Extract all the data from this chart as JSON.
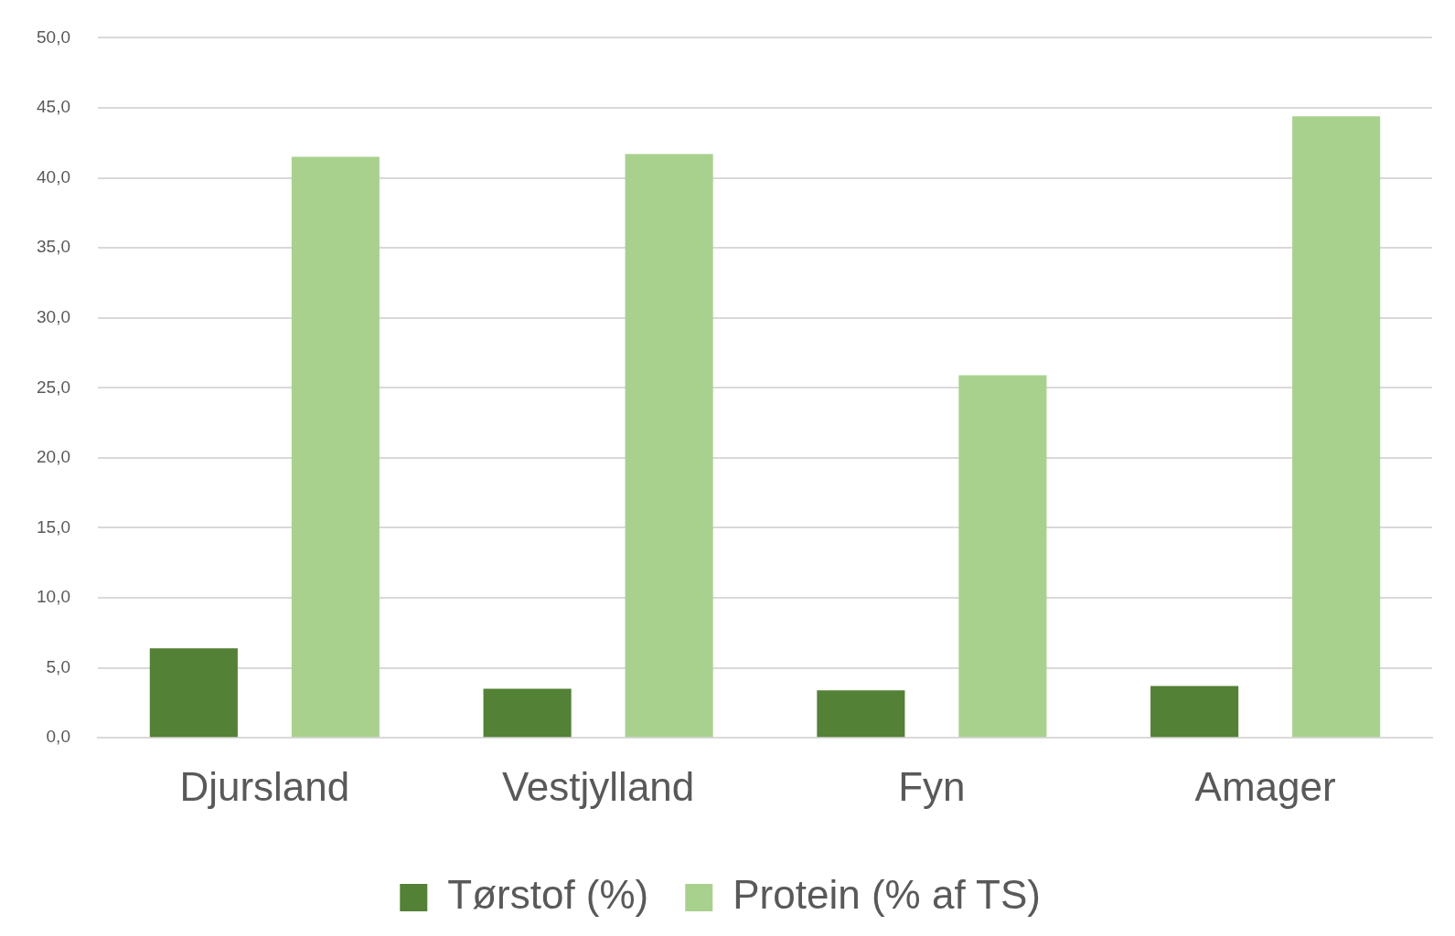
{
  "chart_data": {
    "type": "bar",
    "categories": [
      "Djursland",
      "Vestjylland",
      "Fyn",
      "Amager"
    ],
    "series": [
      {
        "name": "Tørstof (%)",
        "color": "#538135",
        "values": [
          6.4,
          3.5,
          3.4,
          3.7
        ]
      },
      {
        "name": "Protein (% af TS)",
        "color": "#a9d18e",
        "values": [
          41.5,
          41.7,
          25.9,
          44.4
        ]
      }
    ],
    "ylim": [
      0,
      50
    ],
    "yticks": [
      {
        "value": 0,
        "label": "0,0"
      },
      {
        "value": 5,
        "label": "5,0"
      },
      {
        "value": 10,
        "label": "10,0"
      },
      {
        "value": 15,
        "label": "15,0"
      },
      {
        "value": 20,
        "label": "20,0"
      },
      {
        "value": 25,
        "label": "25,0"
      },
      {
        "value": 30,
        "label": "30,0"
      },
      {
        "value": 35,
        "label": "35,0"
      },
      {
        "value": 40,
        "label": "40,0"
      },
      {
        "value": 45,
        "label": "45,0"
      },
      {
        "value": 50,
        "label": "50,0"
      }
    ],
    "grid": "y",
    "legend": "bottom"
  }
}
